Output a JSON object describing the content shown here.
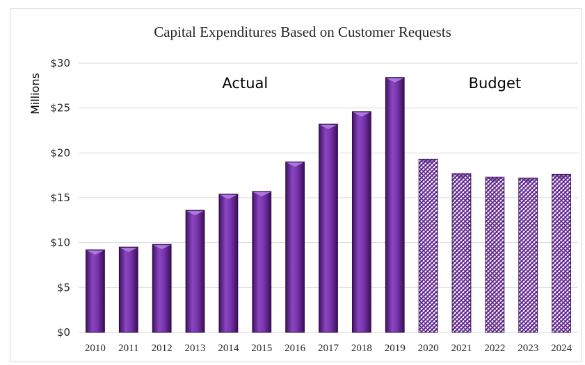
{
  "chart_data": {
    "type": "bar",
    "title": "Capital Expenditures Based on Customer Requests",
    "ylabel": "Millions",
    "xlabel": "",
    "ylim": [
      0,
      30
    ],
    "yticks": [
      0,
      5,
      10,
      15,
      20,
      25,
      30
    ],
    "ytick_labels": [
      "$0",
      "$5",
      "$10",
      "$15",
      "$20",
      "$25",
      "$30"
    ],
    "grid": true,
    "legend": "none",
    "categories": [
      "2010",
      "2011",
      "2012",
      "2013",
      "2014",
      "2015",
      "2016",
      "2017",
      "2018",
      "2019",
      "2020",
      "2021",
      "2022",
      "2023",
      "2024"
    ],
    "values": [
      9.2,
      9.5,
      9.8,
      13.6,
      15.4,
      15.7,
      19.0,
      23.2,
      24.6,
      28.4,
      19.3,
      17.7,
      17.3,
      17.2,
      17.6
    ],
    "segments": [
      {
        "label": "Actual",
        "categories": [
          "2010",
          "2011",
          "2012",
          "2013",
          "2014",
          "2015",
          "2016",
          "2017",
          "2018",
          "2019"
        ],
        "fill": "solid",
        "color": "#7030a0"
      },
      {
        "label": "Budget",
        "categories": [
          "2020",
          "2021",
          "2022",
          "2023",
          "2024"
        ],
        "fill": "hatched",
        "color": "#7030a0"
      }
    ]
  }
}
